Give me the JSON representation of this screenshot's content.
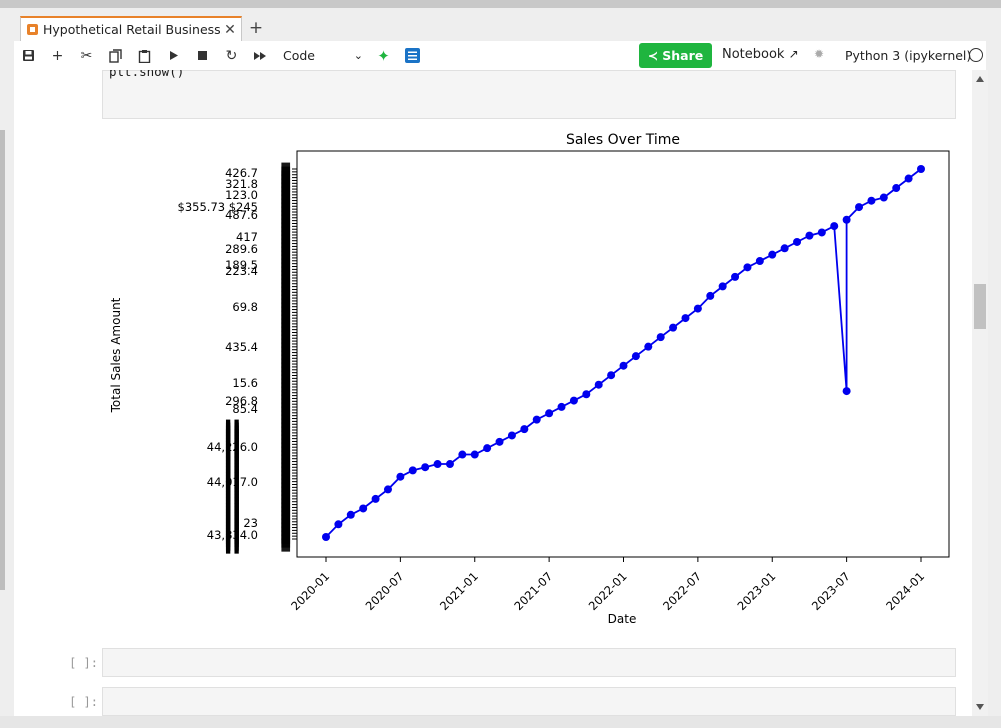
{
  "tabs": [
    {
      "label": "Hypothetical Retail Business."
    }
  ],
  "icons": {
    "file": "notebook-file-icon",
    "close": "close-icon",
    "new_tab": "plus-icon"
  },
  "toolbar": {
    "cell_type": "Code",
    "share_label": "Share",
    "notebook_label": "Notebook",
    "kernel_label": "Python 3 (ipykernel)",
    "colors": {
      "share": "#1fb53f",
      "accent_tab": "#e8822a"
    }
  },
  "cells": {
    "code_visible_line": "plt.show()",
    "empty_prompts": [
      "[ ]:",
      "[ ]:"
    ]
  },
  "chart_data": {
    "type": "line",
    "title": "Sales Over Time",
    "xlabel": "Date",
    "ylabel": "Total Sales Amount",
    "x_ticks": [
      "2020-01",
      "2020-07",
      "2021-01",
      "2021-07",
      "2022-01",
      "2022-07",
      "2023-01",
      "2023-07",
      "2024-01"
    ],
    "y_tick_labels_readable": [
      "426.7",
      "321.8",
      "123.0",
      "$355.73 $245",
      "487.6",
      "417",
      "289.6",
      "189.5",
      "223.4",
      "69.8",
      "435.4",
      "15.6",
      "296.8",
      "85.4",
      "44,226.0",
      "44,017.0",
      "23",
      "43,834.0"
    ],
    "line_color": "#0000ee",
    "series": [
      {
        "marker": "circle",
        "points": [
          [
            "2020-01",
            0.0
          ],
          [
            "2020-02",
            0.04
          ],
          [
            "2020-03",
            0.07
          ],
          [
            "2020-04",
            0.09
          ],
          [
            "2020-05",
            0.12
          ],
          [
            "2020-06",
            0.15
          ],
          [
            "2020-07",
            0.19
          ],
          [
            "2020-08",
            0.21
          ],
          [
            "2020-09",
            0.22
          ],
          [
            "2020-10",
            0.23
          ],
          [
            "2020-11",
            0.23
          ],
          [
            "2020-12",
            0.26
          ],
          [
            "2021-01",
            0.26
          ],
          [
            "2021-02",
            0.28
          ],
          [
            "2021-03",
            0.3
          ],
          [
            "2021-04",
            0.32
          ],
          [
            "2021-05",
            0.34
          ],
          [
            "2021-06",
            0.37
          ],
          [
            "2021-07",
            0.39
          ],
          [
            "2021-08",
            0.41
          ],
          [
            "2021-09",
            0.43
          ],
          [
            "2021-10",
            0.45
          ],
          [
            "2021-11",
            0.48
          ],
          [
            "2021-12",
            0.51
          ],
          [
            "2022-01",
            0.54
          ],
          [
            "2022-02",
            0.57
          ],
          [
            "2022-03",
            0.6
          ],
          [
            "2022-04",
            0.63
          ],
          [
            "2022-05",
            0.66
          ],
          [
            "2022-06",
            0.69
          ],
          [
            "2022-07",
            0.72
          ],
          [
            "2022-08",
            0.76
          ],
          [
            "2022-09",
            0.79
          ],
          [
            "2022-10",
            0.82
          ],
          [
            "2022-11",
            0.85
          ],
          [
            "2022-12",
            0.87
          ],
          [
            "2023-01",
            0.89
          ],
          [
            "2023-02",
            0.91
          ],
          [
            "2023-03",
            0.93
          ],
          [
            "2023-04",
            0.95
          ],
          [
            "2023-05",
            0.96
          ],
          [
            "2023-06",
            0.98
          ],
          [
            "2023-07",
            0.46
          ],
          [
            "2023-07",
            1.0
          ],
          [
            "2023-08",
            1.04
          ],
          [
            "2023-09",
            1.06
          ],
          [
            "2023-10",
            1.07
          ],
          [
            "2023-11",
            1.1
          ],
          [
            "2023-12",
            1.13
          ],
          [
            "2024-01",
            1.16
          ]
        ]
      }
    ]
  }
}
